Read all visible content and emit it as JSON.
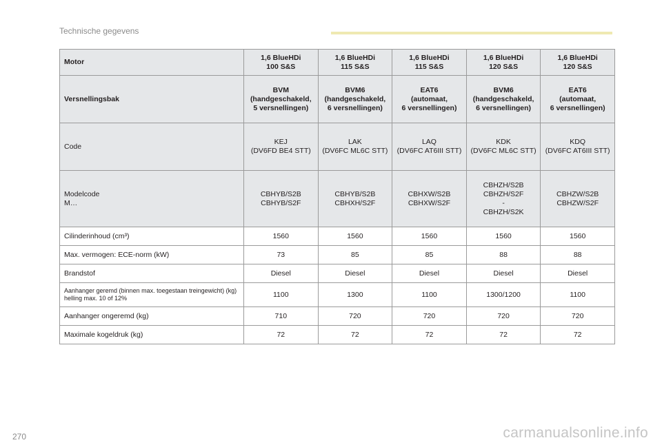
{
  "header": {
    "section_title": "Technische gegevens"
  },
  "table": {
    "rows": [
      {
        "label": "Motor",
        "cells": [
          "1,6 BlueHDi\n100 S&S",
          "1,6 BlueHDi\n115 S&S",
          "1,6 BlueHDi\n115 S&S",
          "1,6 BlueHDi\n120 S&S",
          "1,6 BlueHDi\n120 S&S"
        ]
      },
      {
        "label": "Versnellingsbak",
        "cells": [
          "BVM\n(handgeschakeld,\n5 versnellingen)",
          "BVM6\n(handgeschakeld,\n6 versnellingen)",
          "EAT6\n(automaat,\n6 versnellingen)",
          "BVM6\n(handgeschakeld,\n6 versnellingen)",
          "EAT6\n(automaat,\n6 versnellingen)"
        ]
      },
      {
        "label": "Code",
        "cells": [
          "KEJ\n(DV6FD BE4 STT)",
          "LAK\n(DV6FC ML6C STT)",
          "LAQ\n(DV6FC AT6III STT)",
          "KDK\n(DV6FC ML6C STT)",
          "KDQ\n(DV6FC AT6III STT)"
        ]
      },
      {
        "label": "Modelcode\nM…",
        "cells": [
          "CBHYB/S2B\nCBHYB/S2F",
          "CBHYB/S2B\nCBHXH/S2F",
          "CBHXW/S2B\nCBHXW/S2F",
          "CBHZH/S2B\nCBHZH/S2F\n-\nCBHZH/S2K",
          "CBHZW/S2B\nCBHZW/S2F"
        ]
      },
      {
        "label": "Cilinderinhoud (cm³)",
        "cells": [
          "1560",
          "1560",
          "1560",
          "1560",
          "1560"
        ]
      },
      {
        "label": "Max. vermogen: ECE-norm (kW)",
        "cells": [
          "73",
          "85",
          "85",
          "88",
          "88"
        ]
      },
      {
        "label": "Brandstof",
        "cells": [
          "Diesel",
          "Diesel",
          "Diesel",
          "Diesel",
          "Diesel"
        ]
      },
      {
        "label": "Aanhanger geremd (binnen max. toegestaan treingewicht) (kg)\nhelling max. 10 of 12%",
        "cells": [
          "1100",
          "1300",
          "1100",
          "1300/1200",
          "1100"
        ]
      },
      {
        "label": "Aanhanger ongeremd (kg)",
        "cells": [
          "710",
          "720",
          "720",
          "720",
          "720"
        ]
      },
      {
        "label": "Maximale kogeldruk (kg)",
        "cells": [
          "72",
          "72",
          "72",
          "72",
          "72"
        ]
      }
    ]
  },
  "footer": {
    "page_number": "270",
    "watermark": "carmanualsonline.info"
  }
}
